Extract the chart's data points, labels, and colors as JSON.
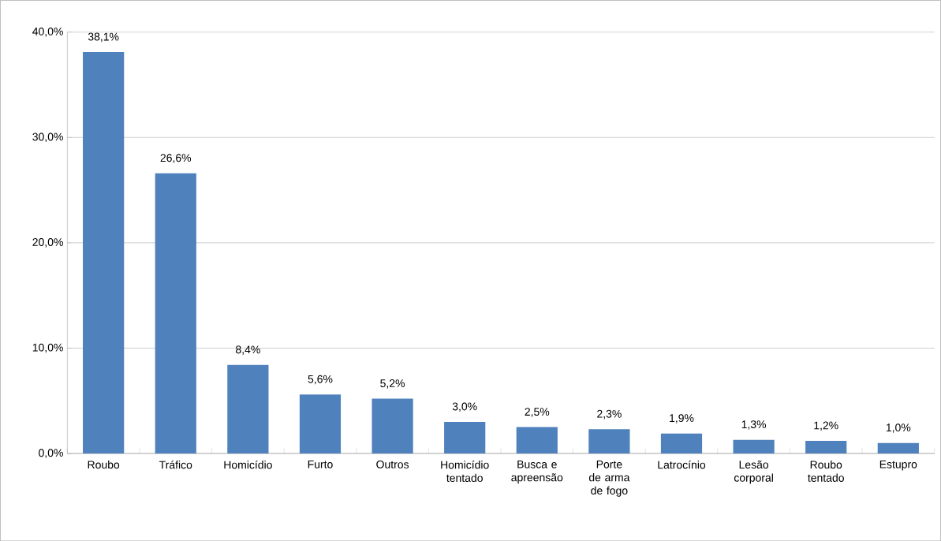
{
  "chart_data": {
    "type": "bar",
    "categories": [
      "Roubo",
      "Tráfico",
      "Homicídio",
      "Furto",
      "Outros",
      "Homicídio tentado",
      "Busca e apreensão",
      "Porte de arma de fogo",
      "Latrocínio",
      "Lesão corporal",
      "Roubo tentado",
      "Estupro"
    ],
    "values": [
      38.1,
      26.6,
      8.4,
      5.6,
      5.2,
      3.0,
      2.5,
      2.3,
      1.9,
      1.3,
      1.2,
      1.0
    ],
    "value_labels": [
      "38,1%",
      "26,6%",
      "8,4%",
      "5,6%",
      "5,2%",
      "3,0%",
      "2,5%",
      "2,3%",
      "1,9%",
      "1,3%",
      "1,2%",
      "1,0%"
    ],
    "color": "#4f81bd",
    "ylim": [
      0,
      40
    ],
    "yticks": [
      {
        "value": 0,
        "label": "0,0%"
      },
      {
        "value": 10,
        "label": "10,0%"
      },
      {
        "value": 20,
        "label": "20,0%"
      },
      {
        "value": 30,
        "label": "30,0%"
      },
      {
        "value": 40,
        "label": "40,0%"
      }
    ],
    "grid": "y"
  }
}
